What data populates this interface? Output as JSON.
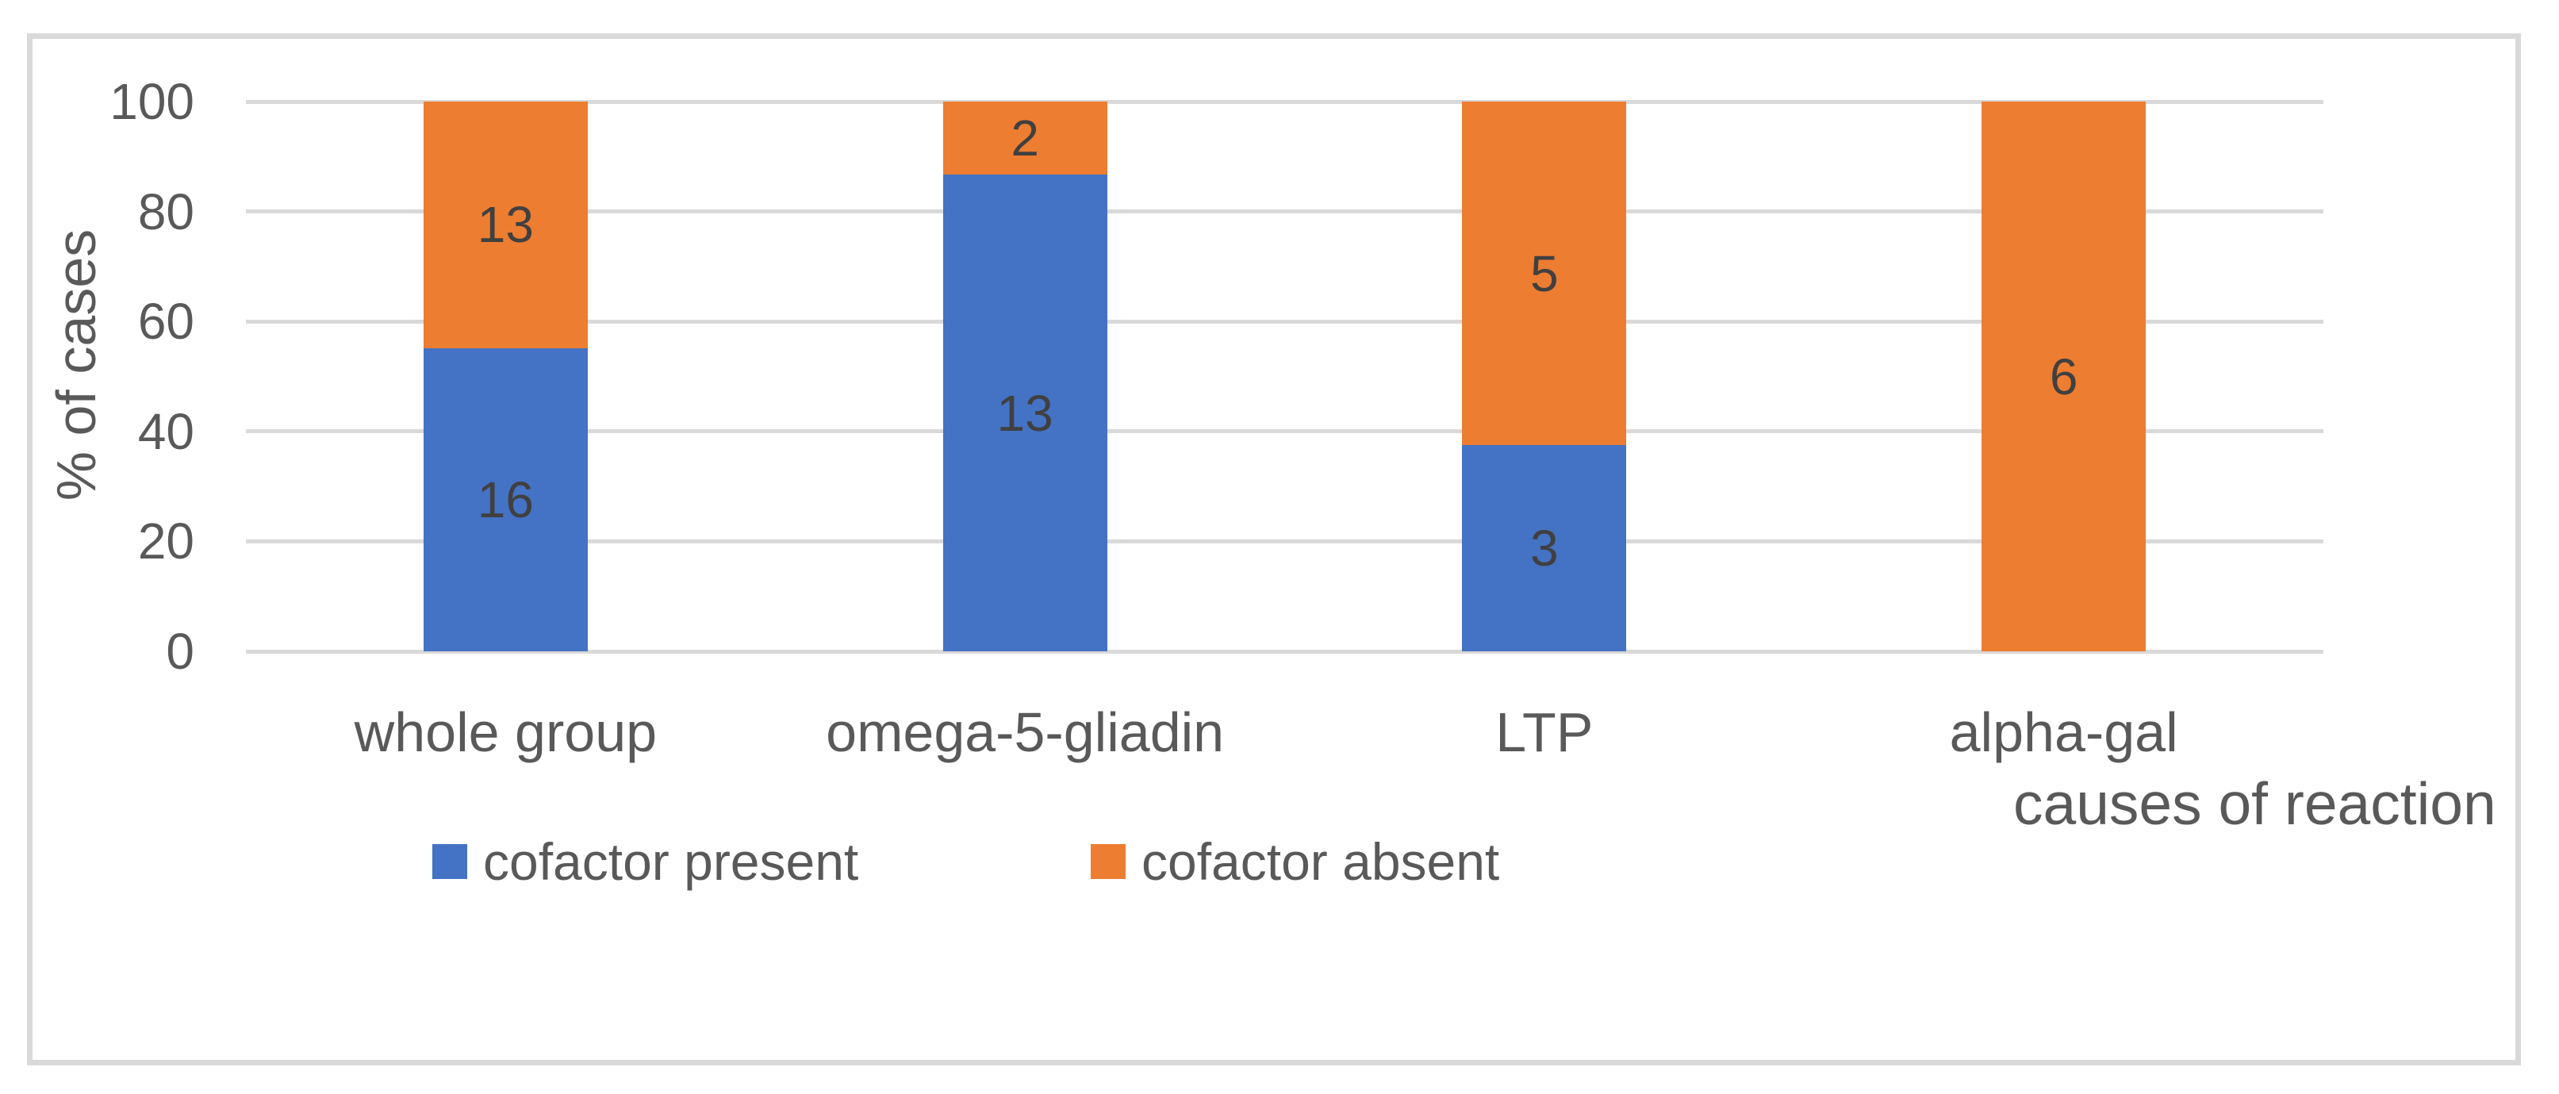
{
  "chart_data": {
    "type": "bar",
    "subtype": "stacked-100-percent",
    "title": "",
    "categories": [
      "whole group",
      "omega-5-gliadin",
      "LTP",
      "alpha-gal"
    ],
    "series": [
      {
        "name": "cofactor present",
        "color": "#4472C4",
        "values": [
          16,
          13,
          3,
          0
        ]
      },
      {
        "name": "cofactor absent",
        "color": "#ED7D31",
        "values": [
          13,
          2,
          5,
          6
        ]
      }
    ],
    "xlabel": "causes of reaction",
    "ylabel": "% of cases",
    "yticks": [
      0,
      20,
      40,
      60,
      80,
      100
    ],
    "ylim": [
      0,
      100
    ],
    "grid": true,
    "legend_position": "bottom"
  },
  "colors": {
    "gridline": "#d9d9d9",
    "frame_border": "#d9d9d9",
    "tick_text": "#595959",
    "category_text": "#595959",
    "axis_title_text": "#595959",
    "legend_text": "#595959",
    "data_label_text": "#404040",
    "series_blue": "#4472C4",
    "series_orange": "#ED7D31"
  }
}
